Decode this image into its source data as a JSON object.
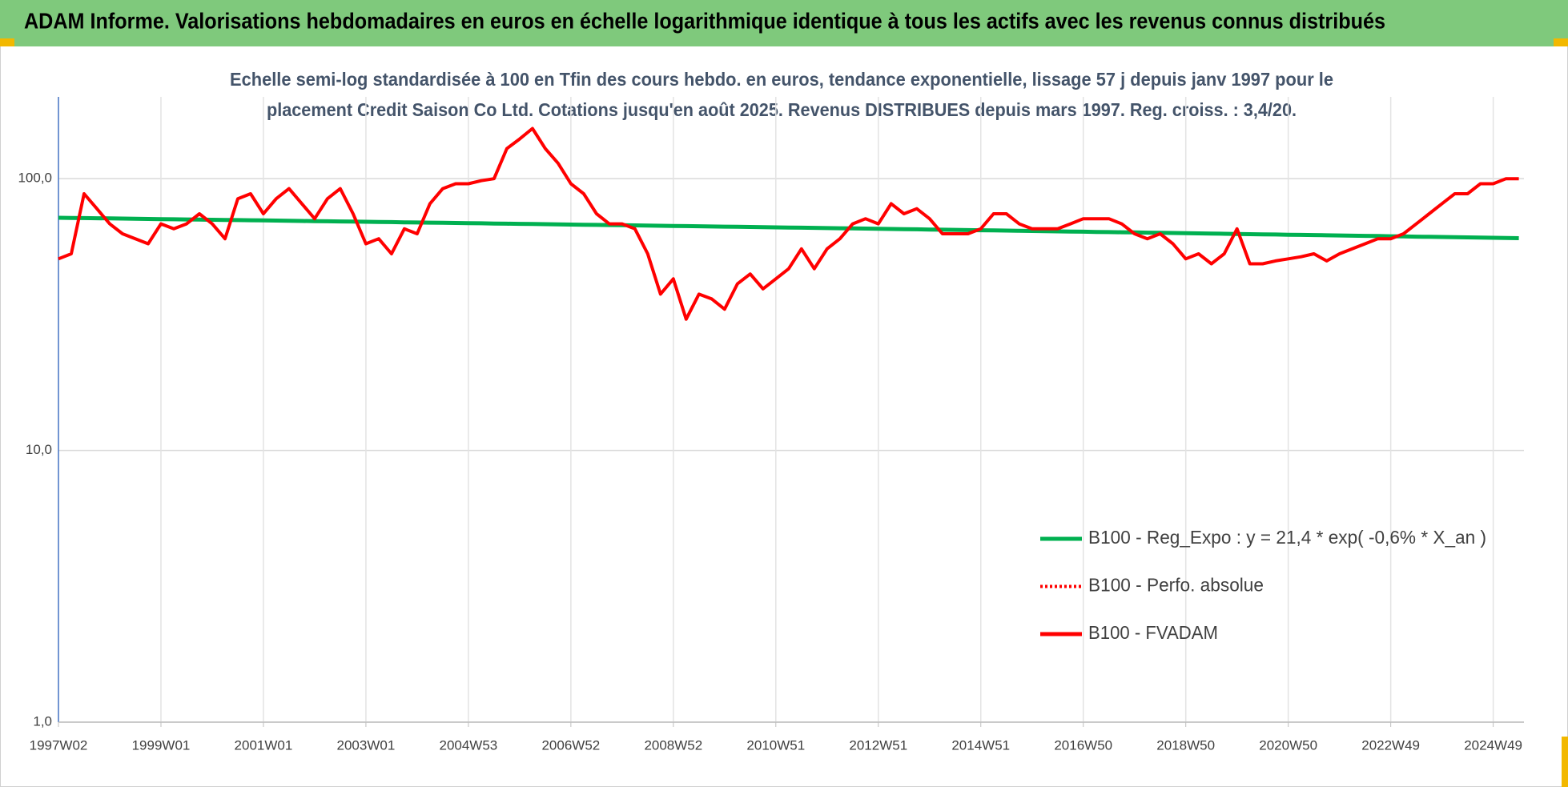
{
  "chart_data": {
    "type": "line",
    "title": "ADAM Informe. Valorisations hebdomadaires en euros en échelle logarithmique identique à tous les actifs avec les revenus connus distribués",
    "subtitle": [
      "Echelle semi-log standardisée à 100 en Tfin des cours hebdo. en euros, tendance exponentielle, lissage 57 j depuis janv 1997 pour le",
      "placement Credit Saison Co Ltd. Cotations jusqu'en août 2025. Revenus DISTRIBUES depuis mars 1997. Reg. croiss. : 3,4/20."
    ],
    "log_scale": true,
    "grid": true,
    "legend": "bottom-right",
    "ylim": [
      1,
      200
    ],
    "yticks": [
      {
        "value": 1,
        "label": "1,0"
      },
      {
        "value": 10,
        "label": "10,0"
      },
      {
        "value": 100,
        "label": "100,0"
      }
    ],
    "categories": [
      "1997W02",
      null,
      null,
      null,
      null,
      null,
      null,
      null,
      "1999W01",
      null,
      null,
      null,
      null,
      null,
      null,
      null,
      "2001W01",
      null,
      null,
      null,
      null,
      null,
      null,
      null,
      "2003W01",
      null,
      null,
      null,
      null,
      null,
      null,
      null,
      "2004W53",
      null,
      null,
      null,
      null,
      null,
      null,
      null,
      "2006W52",
      null,
      null,
      null,
      null,
      null,
      null,
      null,
      "2008W52",
      null,
      null,
      null,
      null,
      null,
      null,
      null,
      "2010W51",
      null,
      null,
      null,
      null,
      null,
      null,
      null,
      "2012W51",
      null,
      null,
      null,
      null,
      null,
      null,
      null,
      "2014W51",
      null,
      null,
      null,
      null,
      null,
      null,
      null,
      "2016W50",
      null,
      null,
      null,
      null,
      null,
      null,
      null,
      "2018W50",
      null,
      null,
      null,
      null,
      null,
      null,
      null,
      "2020W50",
      null,
      null,
      null,
      null,
      null,
      null,
      null,
      "2022W49",
      null,
      null,
      null,
      null,
      null,
      null,
      null,
      "2024W49",
      null,
      null
    ],
    "series": [
      {
        "name": "B100 - Reg_Expo : y = 21,4 * exp( -0,6% *  X_an )",
        "color": "#00b050",
        "dash": false,
        "values": [
          71.8,
          71.7,
          71.6,
          71.5,
          71.4,
          71.3,
          71.2,
          71.1,
          71.0,
          70.9,
          70.8,
          70.7,
          70.6,
          70.5,
          70.4,
          70.3,
          70.2,
          70.1,
          70.0,
          69.9,
          69.8,
          69.7,
          69.6,
          69.5,
          69.4,
          69.3,
          69.2,
          69.1,
          69.0,
          68.9,
          68.8,
          68.7,
          68.6,
          68.5,
          68.4,
          68.3,
          68.2,
          68.1,
          68.0,
          67.9,
          67.8,
          67.7,
          67.6,
          67.5,
          67.4,
          67.3,
          67.2,
          67.1,
          67.0,
          66.9,
          66.8,
          66.7,
          66.6,
          66.5,
          66.4,
          66.3,
          66.2,
          66.1,
          66.0,
          65.9,
          65.8,
          65.7,
          65.6,
          65.5,
          65.4,
          65.3,
          65.2,
          65.1,
          65.0,
          64.9,
          64.8,
          64.7,
          64.6,
          64.5,
          64.4,
          64.3,
          64.2,
          64.1,
          64.0,
          63.9,
          63.8,
          63.7,
          63.6,
          63.5,
          63.4,
          63.3,
          63.2,
          63.1,
          63.0,
          62.9,
          62.8,
          62.7,
          62.6,
          62.5,
          62.4,
          62.3,
          62.2,
          62.1,
          62.0,
          61.9,
          61.8,
          61.7,
          61.6,
          61.5,
          61.4,
          61.3,
          61.2,
          61.1,
          61.0,
          60.9,
          60.8,
          60.7,
          60.6,
          60.5,
          60.4
        ]
      },
      {
        "name": "B100 - Perfo. absolue",
        "color": "#ff0000",
        "dash": true,
        "values": [
          50.7,
          52.9,
          88.0,
          77.5,
          68.2,
          62.7,
          60.1,
          57.6,
          68.2,
          65.4,
          68.2,
          74.3,
          68.2,
          60.1,
          84.4,
          88.0,
          74.3,
          84.4,
          91.9,
          80.9,
          71.2,
          84.4,
          91.9,
          74.3,
          57.6,
          60.1,
          52.9,
          65.4,
          62.7,
          80.9,
          91.9,
          95.8,
          95.8,
          98.3,
          100,
          129,
          140,
          153,
          129,
          114,
          95.8,
          88.0,
          74.3,
          68.2,
          68.2,
          65.4,
          52.9,
          37.6,
          42.8,
          30.4,
          37.6,
          36.1,
          33.1,
          41.0,
          44.6,
          39.3,
          42.8,
          46.6,
          55.2,
          46.6,
          55.2,
          60.1,
          68.2,
          71.2,
          68.2,
          80.9,
          74.3,
          77.5,
          71.2,
          62.7,
          62.7,
          62.7,
          65.4,
          74.3,
          74.3,
          68.2,
          65.4,
          65.4,
          65.4,
          68.2,
          71.2,
          71.2,
          71.2,
          68.2,
          62.7,
          60.1,
          62.7,
          57.6,
          50.7,
          52.9,
          48.6,
          52.9,
          65.4,
          48.6,
          48.6,
          49.8,
          50.7,
          51.6,
          52.9,
          49.8,
          52.9,
          55.2,
          57.6,
          60.1,
          60.1,
          62.7,
          68.2,
          74.3,
          80.9,
          88.0,
          88.0,
          95.8,
          95.8,
          100,
          100
        ]
      },
      {
        "name": "B100 - FVADAM",
        "color": "#ff0000",
        "dash": false,
        "values": [
          50.7,
          52.9,
          88.0,
          77.5,
          68.2,
          62.7,
          60.1,
          57.6,
          68.2,
          65.4,
          68.2,
          74.3,
          68.2,
          60.1,
          84.4,
          88.0,
          74.3,
          84.4,
          91.9,
          80.9,
          71.2,
          84.4,
          91.9,
          74.3,
          57.6,
          60.1,
          52.9,
          65.4,
          62.7,
          80.9,
          91.9,
          95.8,
          95.8,
          98.3,
          100,
          129,
          140,
          153,
          129,
          114,
          95.8,
          88.0,
          74.3,
          68.2,
          68.2,
          65.4,
          52.9,
          37.6,
          42.8,
          30.4,
          37.6,
          36.1,
          33.1,
          41.0,
          44.6,
          39.3,
          42.8,
          46.6,
          55.2,
          46.6,
          55.2,
          60.1,
          68.2,
          71.2,
          68.2,
          80.9,
          74.3,
          77.5,
          71.2,
          62.7,
          62.7,
          62.7,
          65.4,
          74.3,
          74.3,
          68.2,
          65.4,
          65.4,
          65.4,
          68.2,
          71.2,
          71.2,
          71.2,
          68.2,
          62.7,
          60.1,
          62.7,
          57.6,
          50.7,
          52.9,
          48.6,
          52.9,
          65.4,
          48.6,
          48.6,
          49.8,
          50.7,
          51.6,
          52.9,
          49.8,
          52.9,
          55.2,
          57.6,
          60.1,
          60.1,
          62.7,
          68.2,
          74.3,
          80.9,
          88.0,
          88.0,
          95.8,
          95.8,
          100,
          100
        ]
      }
    ]
  }
}
